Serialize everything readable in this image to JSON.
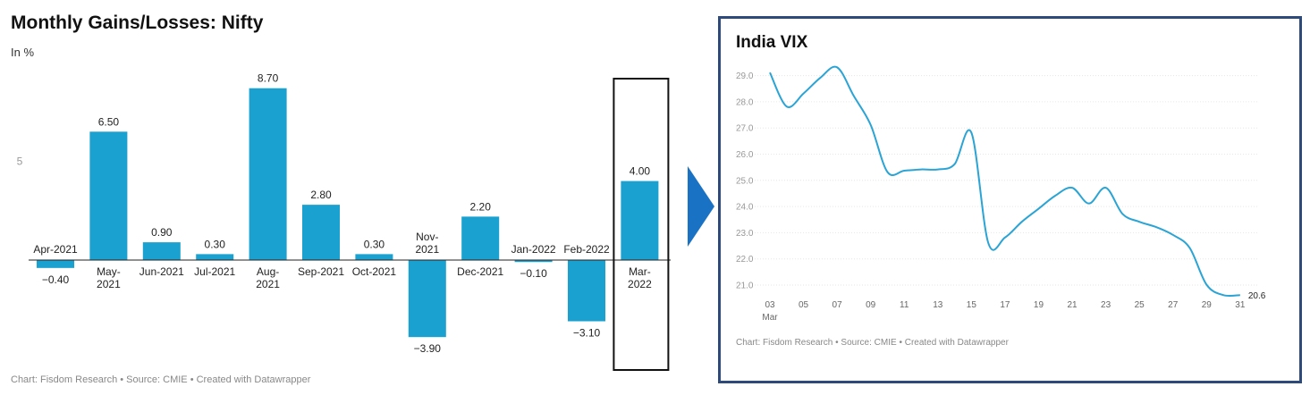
{
  "left": {
    "title": "Monthly Gains/Losses: Nifty",
    "subtitle": "In %",
    "footer": "Chart: Fisdom Research • Source: CMIE • Created with Datawrapper"
  },
  "right": {
    "title": "India VIX",
    "footer": "Chart: Fisdom Research • Source: CMIE • Created with Datawrapper"
  },
  "colors": {
    "bar": "#1aa1d0",
    "line": "#2aa4d5",
    "frame": "#2e4a7a",
    "arrow": "#1a72c4"
  },
  "chart_data": [
    {
      "type": "bar",
      "title": "Monthly Gains/Losses: Nifty",
      "ylabel": "In %",
      "categories": [
        [
          "Apr-2021"
        ],
        [
          "May-",
          "2021"
        ],
        [
          "Jun-2021"
        ],
        [
          "Jul-2021"
        ],
        [
          "Aug-",
          "2021"
        ],
        [
          "Sep-2021"
        ],
        [
          "Oct-2021"
        ],
        [
          "Nov-",
          "2021"
        ],
        [
          "Dec-2021"
        ],
        [
          "Jan-2022"
        ],
        [
          "Feb-2022"
        ],
        [
          "Mar-",
          "2022"
        ]
      ],
      "values": [
        -0.4,
        6.5,
        0.9,
        0.3,
        8.7,
        2.8,
        0.3,
        -3.9,
        2.2,
        -0.1,
        -3.1,
        4.0
      ],
      "value_labels": [
        "−0.40",
        "6.50",
        "0.90",
        "0.30",
        "8.70",
        "2.80",
        "0.30",
        "−3.90",
        "2.20",
        "−0.10",
        "−3.10",
        "4.00"
      ],
      "y_ticks": [
        "5"
      ],
      "highlight_category_index": 11
    },
    {
      "type": "line",
      "title": "India VIX",
      "x": [
        3,
        4,
        5,
        6,
        7,
        8,
        9,
        10,
        11,
        12,
        13,
        14,
        15,
        16,
        17,
        18,
        19,
        20,
        21,
        22,
        23,
        24,
        25,
        26,
        27,
        28,
        29,
        30,
        31
      ],
      "values": [
        29.1,
        27.8,
        28.3,
        28.9,
        29.3,
        28.2,
        27.1,
        25.3,
        25.35,
        25.4,
        25.4,
        25.6,
        26.8,
        22.6,
        22.8,
        23.4,
        23.9,
        24.4,
        24.7,
        24.1,
        24.7,
        23.7,
        23.4,
        23.2,
        22.9,
        22.4,
        21.0,
        20.6,
        20.6
      ],
      "x_ticks": [
        "03",
        "05",
        "07",
        "09",
        "11",
        "13",
        "15",
        "17",
        "19",
        "21",
        "23",
        "25",
        "27",
        "29",
        "31"
      ],
      "x_tick_sublabel": "Mar",
      "y_ticks": [
        "21.0",
        "22.0",
        "23.0",
        "24.0",
        "25.0",
        "26.0",
        "27.0",
        "28.0",
        "29.0"
      ],
      "end_label": "20.6",
      "ylim": [
        20.6,
        29.3
      ]
    }
  ]
}
